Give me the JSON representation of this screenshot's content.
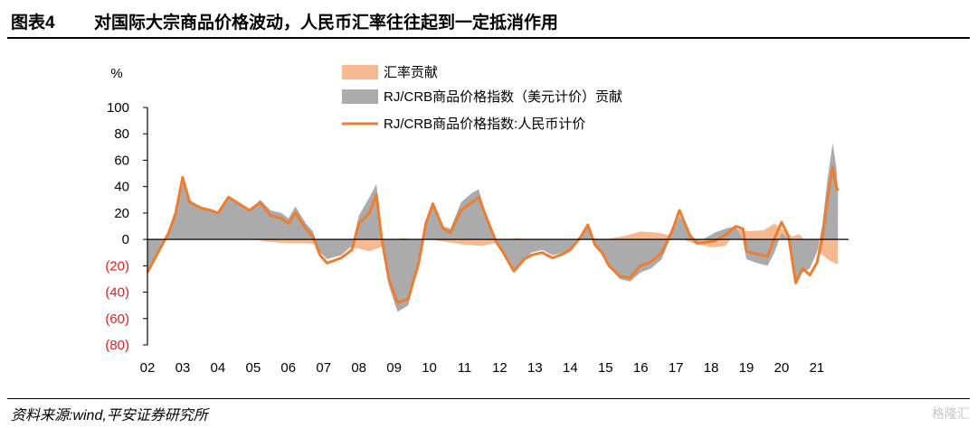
{
  "header": {
    "figure_number": "图表4",
    "title": "对国际大宗商品价格波动，人民币汇率往往起到一定抵消作用"
  },
  "footer": {
    "source": "资料来源:wind,平安证券研究所",
    "watermark": "格隆汇"
  },
  "colors": {
    "fx": "#f7b98f",
    "usd": "#ababab",
    "rmb": "#ed7d31",
    "negative_tick": "#e02020"
  },
  "chart_data": {
    "type": "area",
    "title": "对国际大宗商品价格波动，人民币汇率往往起到一定抵消作用",
    "ylabel": "%",
    "ylim": [
      -80,
      100
    ],
    "yticks": [
      100,
      80,
      60,
      40,
      20,
      0,
      -20,
      -40,
      -60,
      -80
    ],
    "ytick_labels": [
      "100",
      "80",
      "60",
      "40",
      "20",
      "0",
      "(20)",
      "(40)",
      "(60)",
      "(80)"
    ],
    "xlim": [
      2002,
      2021.9
    ],
    "xtick_labels": [
      "02",
      "03",
      "04",
      "05",
      "06",
      "07",
      "08",
      "09",
      "10",
      "11",
      "12",
      "13",
      "14",
      "15",
      "16",
      "17",
      "18",
      "19",
      "20",
      "21"
    ],
    "legend": [
      "汇率贡献",
      "RJ/CRB商品价格指数（美元计价）贡献",
      "RJ/CRB商品价格指数:人民币计价"
    ],
    "legend_position": "top-center",
    "series": [
      {
        "name": "汇率贡献",
        "kind": "area",
        "points": [
          [
            2002.0,
            0
          ],
          [
            2002.5,
            0
          ],
          [
            2003.0,
            0
          ],
          [
            2003.5,
            0
          ],
          [
            2004.0,
            0
          ],
          [
            2005.0,
            0
          ],
          [
            2005.5,
            -2
          ],
          [
            2006.0,
            -3
          ],
          [
            2006.5,
            -3
          ],
          [
            2007.0,
            -4
          ],
          [
            2007.5,
            -5
          ],
          [
            2008.0,
            -7
          ],
          [
            2008.3,
            -9
          ],
          [
            2008.6,
            -6
          ],
          [
            2008.9,
            -2
          ],
          [
            2009.2,
            1
          ],
          [
            2009.6,
            0
          ],
          [
            2010.0,
            0
          ],
          [
            2010.5,
            -2
          ],
          [
            2011.0,
            -4
          ],
          [
            2011.5,
            -5
          ],
          [
            2012.0,
            -2
          ],
          [
            2012.5,
            1
          ],
          [
            2013.0,
            -2
          ],
          [
            2013.5,
            -2
          ],
          [
            2014.0,
            0
          ],
          [
            2014.5,
            1
          ],
          [
            2015.0,
            0
          ],
          [
            2015.6,
            3
          ],
          [
            2016.0,
            6
          ],
          [
            2016.5,
            5
          ],
          [
            2017.0,
            2
          ],
          [
            2017.5,
            -3
          ],
          [
            2018.0,
            -6
          ],
          [
            2018.4,
            -5
          ],
          [
            2018.8,
            8
          ],
          [
            2019.0,
            6
          ],
          [
            2019.5,
            7
          ],
          [
            2019.8,
            12
          ],
          [
            2020.0,
            8
          ],
          [
            2020.3,
            2
          ],
          [
            2020.5,
            4
          ],
          [
            2020.8,
            -5
          ],
          [
            2021.0,
            -8
          ],
          [
            2021.3,
            -15
          ],
          [
            2021.5,
            -18
          ],
          [
            2021.6,
            -19
          ]
        ]
      },
      {
        "name": "RJ/CRB商品价格指数（美元计价）贡献",
        "kind": "area",
        "points": [
          [
            2002.0,
            -25
          ],
          [
            2002.3,
            -10
          ],
          [
            2002.6,
            5
          ],
          [
            2002.8,
            20
          ],
          [
            2003.0,
            48
          ],
          [
            2003.2,
            30
          ],
          [
            2003.5,
            25
          ],
          [
            2003.8,
            22
          ],
          [
            2004.0,
            20
          ],
          [
            2004.3,
            33
          ],
          [
            2004.6,
            28
          ],
          [
            2004.9,
            22
          ],
          [
            2005.2,
            30
          ],
          [
            2005.5,
            22
          ],
          [
            2005.8,
            20
          ],
          [
            2006.0,
            16
          ],
          [
            2006.2,
            25
          ],
          [
            2006.5,
            12
          ],
          [
            2006.7,
            6
          ],
          [
            2006.9,
            -10
          ],
          [
            2007.1,
            -15
          ],
          [
            2007.5,
            -12
          ],
          [
            2007.8,
            -5
          ],
          [
            2008.0,
            18
          ],
          [
            2008.3,
            32
          ],
          [
            2008.5,
            42
          ],
          [
            2008.65,
            5
          ],
          [
            2008.85,
            -35
          ],
          [
            2009.1,
            -55
          ],
          [
            2009.4,
            -50
          ],
          [
            2009.7,
            -20
          ],
          [
            2009.9,
            15
          ],
          [
            2010.1,
            29
          ],
          [
            2010.4,
            10
          ],
          [
            2010.6,
            8
          ],
          [
            2010.9,
            28
          ],
          [
            2011.2,
            35
          ],
          [
            2011.4,
            38
          ],
          [
            2011.6,
            20
          ],
          [
            2011.9,
            0
          ],
          [
            2012.1,
            -10
          ],
          [
            2012.4,
            -25
          ],
          [
            2012.7,
            -15
          ],
          [
            2012.9,
            -10
          ],
          [
            2013.2,
            -8
          ],
          [
            2013.5,
            -12
          ],
          [
            2013.8,
            -10
          ],
          [
            2014.0,
            -8
          ],
          [
            2014.3,
            2
          ],
          [
            2014.5,
            10
          ],
          [
            2014.7,
            -5
          ],
          [
            2014.9,
            -10
          ],
          [
            2015.1,
            -20
          ],
          [
            2015.4,
            -30
          ],
          [
            2015.7,
            -32
          ],
          [
            2016.0,
            -25
          ],
          [
            2016.3,
            -22
          ],
          [
            2016.6,
            -15
          ],
          [
            2016.9,
            5
          ],
          [
            2017.1,
            18
          ],
          [
            2017.4,
            5
          ],
          [
            2017.6,
            -2
          ],
          [
            2017.9,
            2
          ],
          [
            2018.1,
            5
          ],
          [
            2018.4,
            8
          ],
          [
            2018.7,
            10
          ],
          [
            2018.9,
            0
          ],
          [
            2019.0,
            -15
          ],
          [
            2019.3,
            -18
          ],
          [
            2019.6,
            -20
          ],
          [
            2019.8,
            -10
          ],
          [
            2020.0,
            5
          ],
          [
            2020.2,
            0
          ],
          [
            2020.4,
            -30
          ],
          [
            2020.6,
            -25
          ],
          [
            2020.8,
            -22
          ],
          [
            2021.0,
            -10
          ],
          [
            2021.15,
            10
          ],
          [
            2021.3,
            45
          ],
          [
            2021.45,
            73
          ],
          [
            2021.55,
            55
          ],
          [
            2021.6,
            37
          ]
        ]
      },
      {
        "name": "RJ/CRB商品价格指数:人民币计价",
        "kind": "line",
        "points": [
          [
            2002.0,
            -25
          ],
          [
            2002.3,
            -10
          ],
          [
            2002.6,
            5
          ],
          [
            2002.8,
            20
          ],
          [
            2003.0,
            47
          ],
          [
            2003.2,
            28
          ],
          [
            2003.5,
            24
          ],
          [
            2003.8,
            22
          ],
          [
            2004.0,
            20
          ],
          [
            2004.3,
            32
          ],
          [
            2004.6,
            27
          ],
          [
            2004.9,
            22
          ],
          [
            2005.2,
            28
          ],
          [
            2005.5,
            18
          ],
          [
            2005.8,
            16
          ],
          [
            2006.0,
            12
          ],
          [
            2006.2,
            20
          ],
          [
            2006.5,
            8
          ],
          [
            2006.7,
            2
          ],
          [
            2006.9,
            -12
          ],
          [
            2007.1,
            -18
          ],
          [
            2007.5,
            -14
          ],
          [
            2007.8,
            -8
          ],
          [
            2008.0,
            12
          ],
          [
            2008.3,
            20
          ],
          [
            2008.5,
            34
          ],
          [
            2008.65,
            0
          ],
          [
            2008.85,
            -30
          ],
          [
            2009.1,
            -48
          ],
          [
            2009.4,
            -45
          ],
          [
            2009.7,
            -18
          ],
          [
            2009.9,
            12
          ],
          [
            2010.1,
            27
          ],
          [
            2010.4,
            8
          ],
          [
            2010.6,
            5
          ],
          [
            2010.9,
            22
          ],
          [
            2011.2,
            28
          ],
          [
            2011.4,
            32
          ],
          [
            2011.6,
            18
          ],
          [
            2011.9,
            -2
          ],
          [
            2012.1,
            -10
          ],
          [
            2012.4,
            -24
          ],
          [
            2012.7,
            -15
          ],
          [
            2012.9,
            -12
          ],
          [
            2013.2,
            -10
          ],
          [
            2013.5,
            -14
          ],
          [
            2013.8,
            -11
          ],
          [
            2014.0,
            -8
          ],
          [
            2014.3,
            2
          ],
          [
            2014.5,
            11
          ],
          [
            2014.7,
            -4
          ],
          [
            2014.9,
            -10
          ],
          [
            2015.1,
            -20
          ],
          [
            2015.4,
            -28
          ],
          [
            2015.7,
            -29
          ],
          [
            2016.0,
            -20
          ],
          [
            2016.3,
            -17
          ],
          [
            2016.6,
            -10
          ],
          [
            2016.9,
            7
          ],
          [
            2017.1,
            22
          ],
          [
            2017.4,
            3
          ],
          [
            2017.6,
            -3
          ],
          [
            2017.9,
            -2
          ],
          [
            2018.1,
            -1
          ],
          [
            2018.4,
            3
          ],
          [
            2018.7,
            10
          ],
          [
            2018.9,
            8
          ],
          [
            2019.0,
            -9
          ],
          [
            2019.3,
            -11
          ],
          [
            2019.6,
            -13
          ],
          [
            2019.8,
            1
          ],
          [
            2020.0,
            13
          ],
          [
            2020.2,
            2
          ],
          [
            2020.4,
            -33
          ],
          [
            2020.6,
            -22
          ],
          [
            2020.8,
            -27
          ],
          [
            2021.0,
            -18
          ],
          [
            2021.15,
            0
          ],
          [
            2021.3,
            30
          ],
          [
            2021.45,
            55
          ],
          [
            2021.55,
            40
          ],
          [
            2021.6,
            37
          ]
        ]
      }
    ]
  }
}
